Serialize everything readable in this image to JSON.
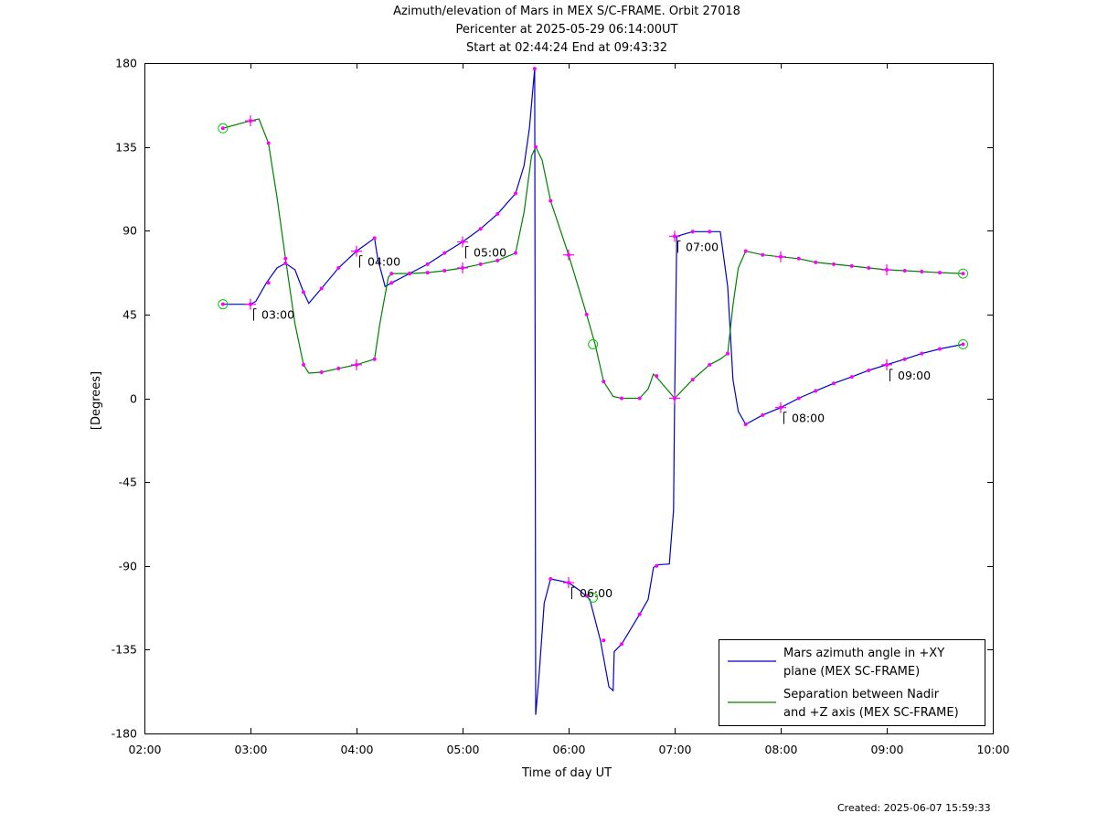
{
  "title": {
    "line1": "Azimuth/elevation of Mars in MEX S/C-FRAME.  Orbit 27018",
    "line2": "Pericenter at 2025-05-29 06:14:00UT",
    "line3": "Start at 02:44:24 End at 09:43:32"
  },
  "footer": {
    "created": "Created: 2025-06-07 15:59:33"
  },
  "chart_data": {
    "type": "line",
    "xlabel": "Time of day UT",
    "ylabel": "[Degrees]",
    "xlim": [
      2.0,
      10.0
    ],
    "ylim": [
      -180,
      180
    ],
    "x_ticks": [
      {
        "value": 2,
        "label": "02:00"
      },
      {
        "value": 3,
        "label": "03:00"
      },
      {
        "value": 4,
        "label": "04:00"
      },
      {
        "value": 5,
        "label": "05:00"
      },
      {
        "value": 6,
        "label": "06:00"
      },
      {
        "value": 7,
        "label": "07:00"
      },
      {
        "value": 8,
        "label": "08:00"
      },
      {
        "value": 9,
        "label": "09:00"
      },
      {
        "value": 10,
        "label": "10:00"
      }
    ],
    "y_ticks": [
      {
        "value": 180,
        "label": "180"
      },
      {
        "value": 135,
        "label": "135"
      },
      {
        "value": 90,
        "label": "90"
      },
      {
        "value": 45,
        "label": "45"
      },
      {
        "value": 0,
        "label": "0"
      },
      {
        "value": -45,
        "label": "-45"
      },
      {
        "value": -90,
        "label": "-90"
      },
      {
        "value": -135,
        "label": "-135"
      },
      {
        "value": -180,
        "label": "-180"
      }
    ],
    "series": [
      {
        "name": "Mars azimuth angle in +XY plane (MEX SC-FRAME)",
        "color": "#0000cc",
        "legend_lines": [
          "Mars azimuth angle in +XY",
          "plane (MEX SC-FRAME)"
        ],
        "points": [
          [
            2.74,
            50.5
          ],
          [
            3.0,
            50.5
          ],
          [
            3.05,
            52
          ],
          [
            3.15,
            62
          ],
          [
            3.25,
            70
          ],
          [
            3.33,
            72.5
          ],
          [
            3.42,
            69
          ],
          [
            3.5,
            57
          ],
          [
            3.55,
            51
          ],
          [
            3.67,
            59
          ],
          [
            3.83,
            70
          ],
          [
            4.0,
            79
          ],
          [
            4.17,
            86
          ],
          [
            4.2,
            75
          ],
          [
            4.27,
            60
          ],
          [
            4.33,
            62
          ],
          [
            4.5,
            67
          ],
          [
            4.67,
            72
          ],
          [
            4.83,
            78
          ],
          [
            5.0,
            84
          ],
          [
            5.17,
            91
          ],
          [
            5.33,
            99
          ],
          [
            5.5,
            110
          ],
          [
            5.58,
            125
          ],
          [
            5.63,
            145
          ],
          [
            5.68,
            177
          ],
          [
            5.685,
            -10
          ],
          [
            5.69,
            -170
          ],
          [
            5.72,
            -150
          ],
          [
            5.77,
            -110
          ],
          [
            5.83,
            -97
          ],
          [
            6.0,
            -99
          ],
          [
            6.1,
            -103
          ],
          [
            6.2,
            -108
          ],
          [
            6.3,
            -130
          ],
          [
            6.38,
            -155
          ],
          [
            6.42,
            -157
          ],
          [
            6.43,
            -136
          ],
          [
            6.5,
            -132
          ],
          [
            6.67,
            -116
          ],
          [
            6.75,
            -108
          ],
          [
            6.8,
            -91
          ],
          [
            6.83,
            -89.5
          ],
          [
            6.95,
            -89
          ],
          [
            6.99,
            -60
          ],
          [
            7.0,
            0
          ],
          [
            7.02,
            87
          ],
          [
            7.17,
            89.5
          ],
          [
            7.33,
            89.5
          ],
          [
            7.43,
            89.5
          ],
          [
            7.5,
            60
          ],
          [
            7.55,
            10
          ],
          [
            7.6,
            -7
          ],
          [
            7.67,
            -14
          ],
          [
            7.83,
            -9
          ],
          [
            8.0,
            -5
          ],
          [
            8.17,
            0
          ],
          [
            8.33,
            4
          ],
          [
            8.5,
            8
          ],
          [
            8.67,
            11.5
          ],
          [
            8.83,
            15
          ],
          [
            9.0,
            18
          ],
          [
            9.17,
            21
          ],
          [
            9.33,
            24
          ],
          [
            9.5,
            26.5
          ],
          [
            9.72,
            29
          ]
        ],
        "markers": [
          [
            2.74,
            50.5
          ],
          [
            3.0,
            50.5
          ],
          [
            3.17,
            62
          ],
          [
            3.33,
            72.5
          ],
          [
            3.5,
            57
          ],
          [
            3.67,
            59
          ],
          [
            3.83,
            70
          ],
          [
            4.0,
            79
          ],
          [
            4.17,
            86
          ],
          [
            4.33,
            62
          ],
          [
            4.5,
            67
          ],
          [
            4.67,
            72
          ],
          [
            4.83,
            78
          ],
          [
            5.0,
            84
          ],
          [
            5.17,
            91
          ],
          [
            5.33,
            99
          ],
          [
            5.5,
            110
          ],
          [
            5.68,
            177
          ],
          [
            5.83,
            -97
          ],
          [
            6.0,
            -99
          ],
          [
            6.17,
            -106
          ],
          [
            6.33,
            -130
          ],
          [
            6.5,
            -132
          ],
          [
            6.67,
            -116
          ],
          [
            6.83,
            -90
          ],
          [
            7.0,
            87
          ],
          [
            7.17,
            89.5
          ],
          [
            7.33,
            89.5
          ],
          [
            7.67,
            -14
          ],
          [
            7.83,
            -9
          ],
          [
            8.0,
            -5
          ],
          [
            8.17,
            0
          ],
          [
            8.33,
            4
          ],
          [
            8.5,
            8
          ],
          [
            8.67,
            11.5
          ],
          [
            8.83,
            15
          ],
          [
            9.0,
            18
          ],
          [
            9.17,
            21
          ],
          [
            9.33,
            24
          ],
          [
            9.5,
            26.5
          ],
          [
            9.72,
            29
          ]
        ]
      },
      {
        "name": "Separation between Nadir and +Z axis (MEX SC-FRAME)",
        "color": "#008000",
        "legend_lines": [
          "Separation between Nadir",
          "and +Z axis (MEX SC-FRAME)"
        ],
        "points": [
          [
            2.74,
            145
          ],
          [
            3.0,
            149
          ],
          [
            3.08,
            150
          ],
          [
            3.17,
            137
          ],
          [
            3.25,
            108
          ],
          [
            3.33,
            75
          ],
          [
            3.42,
            40
          ],
          [
            3.5,
            18
          ],
          [
            3.55,
            13.5
          ],
          [
            3.67,
            14
          ],
          [
            3.83,
            16
          ],
          [
            4.0,
            18
          ],
          [
            4.17,
            21
          ],
          [
            4.22,
            40
          ],
          [
            4.3,
            65
          ],
          [
            4.33,
            67
          ],
          [
            4.5,
            67
          ],
          [
            4.67,
            67.5
          ],
          [
            4.83,
            68.5
          ],
          [
            5.0,
            70
          ],
          [
            5.17,
            72
          ],
          [
            5.33,
            74
          ],
          [
            5.5,
            78
          ],
          [
            5.58,
            100
          ],
          [
            5.65,
            130
          ],
          [
            5.69,
            135
          ],
          [
            5.75,
            128
          ],
          [
            5.83,
            106
          ],
          [
            6.0,
            77
          ],
          [
            6.17,
            45
          ],
          [
            6.25,
            29
          ],
          [
            6.33,
            9
          ],
          [
            6.42,
            1
          ],
          [
            6.5,
            0
          ],
          [
            6.67,
            0
          ],
          [
            6.75,
            5
          ],
          [
            6.8,
            13
          ],
          [
            6.85,
            10
          ],
          [
            7.0,
            0
          ],
          [
            7.17,
            10
          ],
          [
            7.33,
            18
          ],
          [
            7.43,
            21
          ],
          [
            7.5,
            24
          ],
          [
            7.55,
            50
          ],
          [
            7.6,
            70
          ],
          [
            7.67,
            79
          ],
          [
            7.83,
            77
          ],
          [
            8.0,
            76
          ],
          [
            8.17,
            75
          ],
          [
            8.33,
            73
          ],
          [
            8.5,
            72
          ],
          [
            8.67,
            71
          ],
          [
            8.83,
            70
          ],
          [
            9.0,
            69
          ],
          [
            9.17,
            68.5
          ],
          [
            9.33,
            68
          ],
          [
            9.5,
            67.5
          ],
          [
            9.72,
            67
          ]
        ],
        "markers": [
          [
            2.74,
            145
          ],
          [
            3.0,
            149
          ],
          [
            3.17,
            137
          ],
          [
            3.33,
            75
          ],
          [
            3.5,
            18
          ],
          [
            3.67,
            14
          ],
          [
            3.83,
            16
          ],
          [
            4.0,
            18
          ],
          [
            4.17,
            21
          ],
          [
            4.33,
            67
          ],
          [
            4.5,
            67
          ],
          [
            4.67,
            67.5
          ],
          [
            4.83,
            68.5
          ],
          [
            5.0,
            70
          ],
          [
            5.17,
            72
          ],
          [
            5.33,
            74
          ],
          [
            5.5,
            78
          ],
          [
            5.69,
            135
          ],
          [
            5.83,
            106
          ],
          [
            6.0,
            77
          ],
          [
            6.17,
            45
          ],
          [
            6.33,
            9
          ],
          [
            6.5,
            0
          ],
          [
            6.67,
            0
          ],
          [
            6.83,
            12
          ],
          [
            7.0,
            0
          ],
          [
            7.17,
            10
          ],
          [
            7.33,
            18
          ],
          [
            7.5,
            24
          ],
          [
            7.67,
            79
          ],
          [
            7.83,
            77
          ],
          [
            8.0,
            76
          ],
          [
            8.17,
            75
          ],
          [
            8.33,
            73
          ],
          [
            8.5,
            72
          ],
          [
            8.67,
            71
          ],
          [
            8.83,
            70
          ],
          [
            9.0,
            69
          ],
          [
            9.17,
            68.5
          ],
          [
            9.33,
            68
          ],
          [
            9.5,
            67.5
          ],
          [
            9.72,
            67
          ]
        ]
      }
    ],
    "circle_markers": [
      {
        "x": 2.74,
        "y": 145
      },
      {
        "x": 2.74,
        "y": 50.5
      },
      {
        "x": 6.23,
        "y": 29
      },
      {
        "x": 6.23,
        "y": -107
      },
      {
        "x": 9.72,
        "y": 67
      },
      {
        "x": 9.72,
        "y": 29
      }
    ],
    "cross_markers": [
      {
        "x": 3.0,
        "y": 149
      },
      {
        "x": 3.0,
        "y": 50.5
      },
      {
        "x": 4.0,
        "y": 79
      },
      {
        "x": 4.0,
        "y": 18
      },
      {
        "x": 5.0,
        "y": 84
      },
      {
        "x": 5.0,
        "y": 70
      },
      {
        "x": 6.0,
        "y": 77
      },
      {
        "x": 6.0,
        "y": -99
      },
      {
        "x": 7.0,
        "y": 87
      },
      {
        "x": 7.0,
        "y": 0
      },
      {
        "x": 8.0,
        "y": 76
      },
      {
        "x": 8.0,
        "y": -5
      },
      {
        "x": 9.0,
        "y": 69
      },
      {
        "x": 9.0,
        "y": 18
      }
    ],
    "annotations": [
      {
        "x": 3.0,
        "y": 50.5,
        "text": "03:00"
      },
      {
        "x": 4.0,
        "y": 79,
        "text": "04:00"
      },
      {
        "x": 5.0,
        "y": 84,
        "text": "05:00"
      },
      {
        "x": 6.0,
        "y": -99,
        "text": "06:00"
      },
      {
        "x": 7.0,
        "y": 87,
        "text": "07:00"
      },
      {
        "x": 8.0,
        "y": -5,
        "text": "08:00"
      },
      {
        "x": 9.0,
        "y": 18,
        "text": "09:00"
      }
    ],
    "legend_position": "bottom-right",
    "marker_color": "#ff00ff",
    "circle_color": "#00cc00"
  }
}
